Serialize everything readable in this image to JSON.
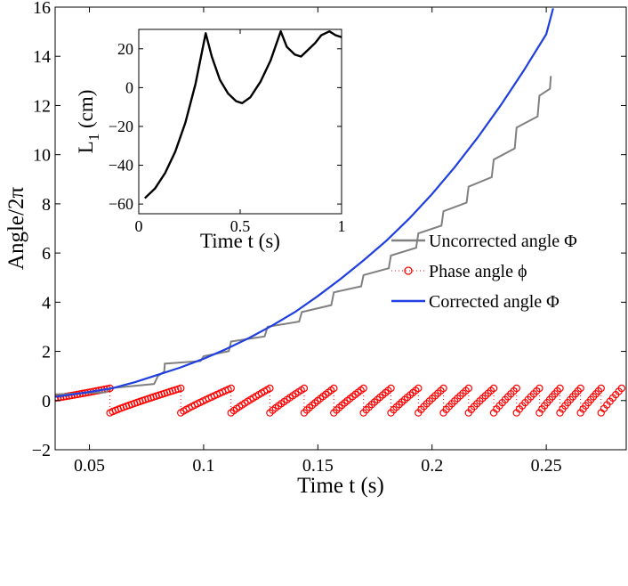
{
  "chart_data": [
    {
      "id": "main",
      "type": "line",
      "xlabel": "Time  t (s)",
      "ylabel": "Angle/2π",
      "xlim": [
        0.035,
        0.285
      ],
      "ylim": [
        -2,
        16
      ],
      "xticks": [
        0.05,
        0.1,
        0.15,
        0.2,
        0.25
      ],
      "xtick_labels": [
        "0.05",
        "0.1",
        "0.15",
        "0.2",
        "0.25"
      ],
      "yticks": [
        -2,
        0,
        2,
        4,
        6,
        8,
        10,
        12,
        14,
        16
      ],
      "ytick_labels": [
        "−2",
        "0",
        "2",
        "4",
        "6",
        "8",
        "10",
        "12",
        "14",
        "16"
      ],
      "series": [
        {
          "name": "Uncorrected angle Φ",
          "color": "#808080",
          "style": "line",
          "x": [
            0.035,
            0.059,
            0.08,
            0.083,
            0.1,
            0.112,
            0.128,
            0.143,
            0.157,
            0.17,
            0.182,
            0.194,
            0.205,
            0.216,
            0.227,
            0.237,
            0.247,
            0.252
          ],
          "y": [
            0.25,
            0.5,
            1.0,
            1.5,
            1.8,
            2.4,
            3.0,
            3.6,
            4.4,
            5.1,
            5.9,
            6.8,
            7.7,
            8.7,
            9.8,
            11.1,
            12.4,
            13.2
          ]
        },
        {
          "name": "Phase angle ϕ",
          "color": "#ff0000",
          "style": "markers",
          "period_starts": [
            0.035,
            0.059,
            0.09,
            0.112,
            0.129,
            0.144,
            0.157,
            0.17,
            0.182,
            0.194,
            0.205,
            0.216,
            0.227,
            0.237,
            0.247,
            0.256,
            0.265,
            0.274
          ],
          "period_ends": [
            0.059,
            0.09,
            0.112,
            0.129,
            0.144,
            0.157,
            0.17,
            0.182,
            0.194,
            0.205,
            0.216,
            0.227,
            0.237,
            0.247,
            0.256,
            0.265,
            0.274,
            0.283
          ],
          "y_range": [
            -0.5,
            0.5
          ]
        },
        {
          "name": "Corrected angle Φ",
          "color": "#1f3fe0",
          "style": "line",
          "x": [
            0.035,
            0.05,
            0.06,
            0.07,
            0.08,
            0.09,
            0.1,
            0.11,
            0.12,
            0.13,
            0.14,
            0.15,
            0.16,
            0.17,
            0.18,
            0.19,
            0.2,
            0.21,
            0.22,
            0.23,
            0.24,
            0.25,
            0.253
          ],
          "y": [
            0.15,
            0.35,
            0.5,
            0.75,
            1.05,
            1.35,
            1.7,
            2.1,
            2.55,
            3.05,
            3.6,
            4.25,
            4.95,
            5.7,
            6.5,
            7.4,
            8.4,
            9.5,
            10.7,
            12.0,
            13.4,
            14.9,
            15.95
          ]
        }
      ],
      "legend_position": "right"
    },
    {
      "id": "inset",
      "type": "line",
      "xlabel": "Time  t (s)",
      "ylabel": "L1 (cm)",
      "ylabel_main": "L",
      "ylabel_sub": "1",
      "ylabel_unit": " (cm)",
      "xlim": [
        0,
        1
      ],
      "ylim": [
        -65,
        30
      ],
      "xticks": [
        0,
        0.5,
        1
      ],
      "xtick_labels": [
        "0",
        "0.5",
        "1"
      ],
      "yticks": [
        -60,
        -40,
        -20,
        0,
        20
      ],
      "ytick_labels": [
        "−60",
        "−40",
        "−20",
        "0",
        "20"
      ],
      "series": [
        {
          "name": "L1",
          "color": "#000000",
          "x": [
            0.03,
            0.08,
            0.13,
            0.18,
            0.23,
            0.28,
            0.33,
            0.36,
            0.4,
            0.44,
            0.48,
            0.51,
            0.55,
            0.6,
            0.65,
            0.7,
            0.73,
            0.77,
            0.8,
            0.83,
            0.87,
            0.9,
            0.94,
            0.97,
            1.0
          ],
          "y": [
            -57,
            -52,
            -44,
            -33,
            -18,
            2,
            28,
            16,
            4,
            -3,
            -7,
            -8,
            -5,
            3,
            14,
            29,
            21,
            17,
            16,
            19,
            23,
            27,
            29,
            27,
            26
          ]
        }
      ]
    }
  ]
}
